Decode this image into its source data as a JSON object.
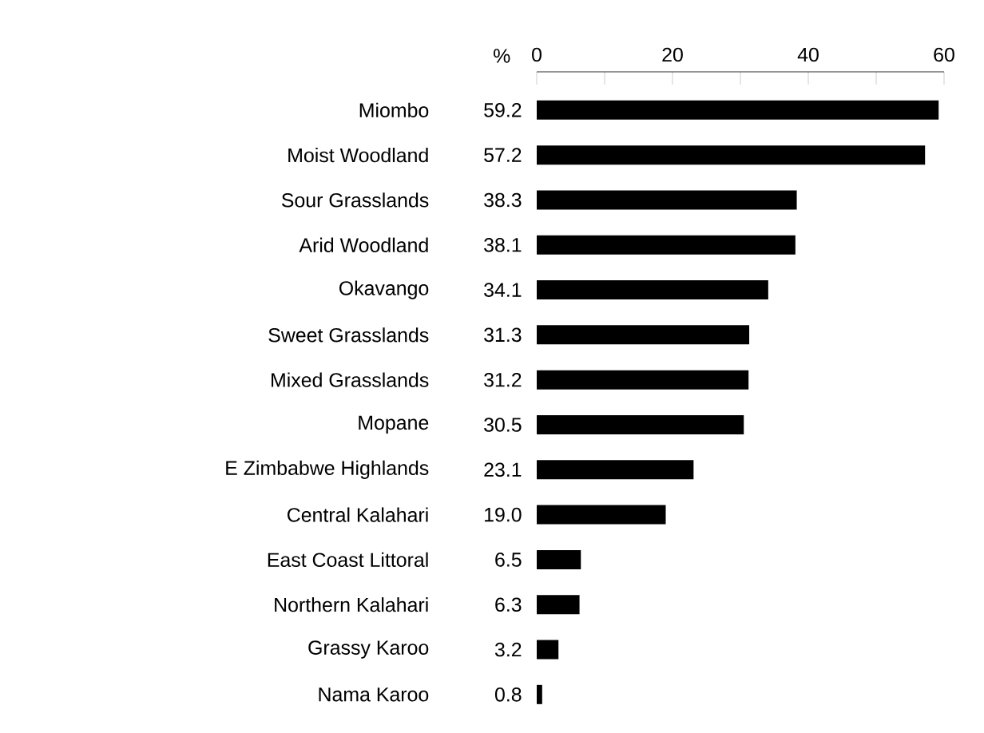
{
  "chart_data": {
    "type": "bar",
    "orientation": "horizontal",
    "xlabel": "%",
    "categories": [
      "Miombo",
      "Moist Woodland",
      "Sour Grasslands",
      "Arid Woodland",
      "Okavango",
      "Sweet Grasslands",
      "Mixed Grasslands",
      "Mopane",
      "E Zimbabwe Highlands",
      "Central Kalahari",
      "East Coast Littoral",
      "Northern Kalahari",
      "Grassy Karoo",
      "Nama Karoo"
    ],
    "values": [
      59.2,
      57.2,
      38.3,
      38.1,
      34.1,
      31.3,
      31.2,
      30.5,
      23.1,
      19.0,
      6.5,
      6.3,
      3.2,
      0.8
    ],
    "value_labels": [
      "59.2",
      "57.2",
      "38.3",
      "38.1",
      "34.1",
      "31.3",
      "31.2",
      "30.5",
      "23.1",
      "19.0",
      "6.5",
      "6.3",
      "3.2",
      "0.8"
    ],
    "color": "#000000",
    "xlim": [
      0,
      60
    ],
    "xticks": [
      0,
      {
        "value": 10,
        "label": null
      },
      20,
      {
        "value": 30,
        "label": null
      },
      40,
      {
        "value": 50,
        "label": null
      },
      60
    ],
    "grid": false
  }
}
